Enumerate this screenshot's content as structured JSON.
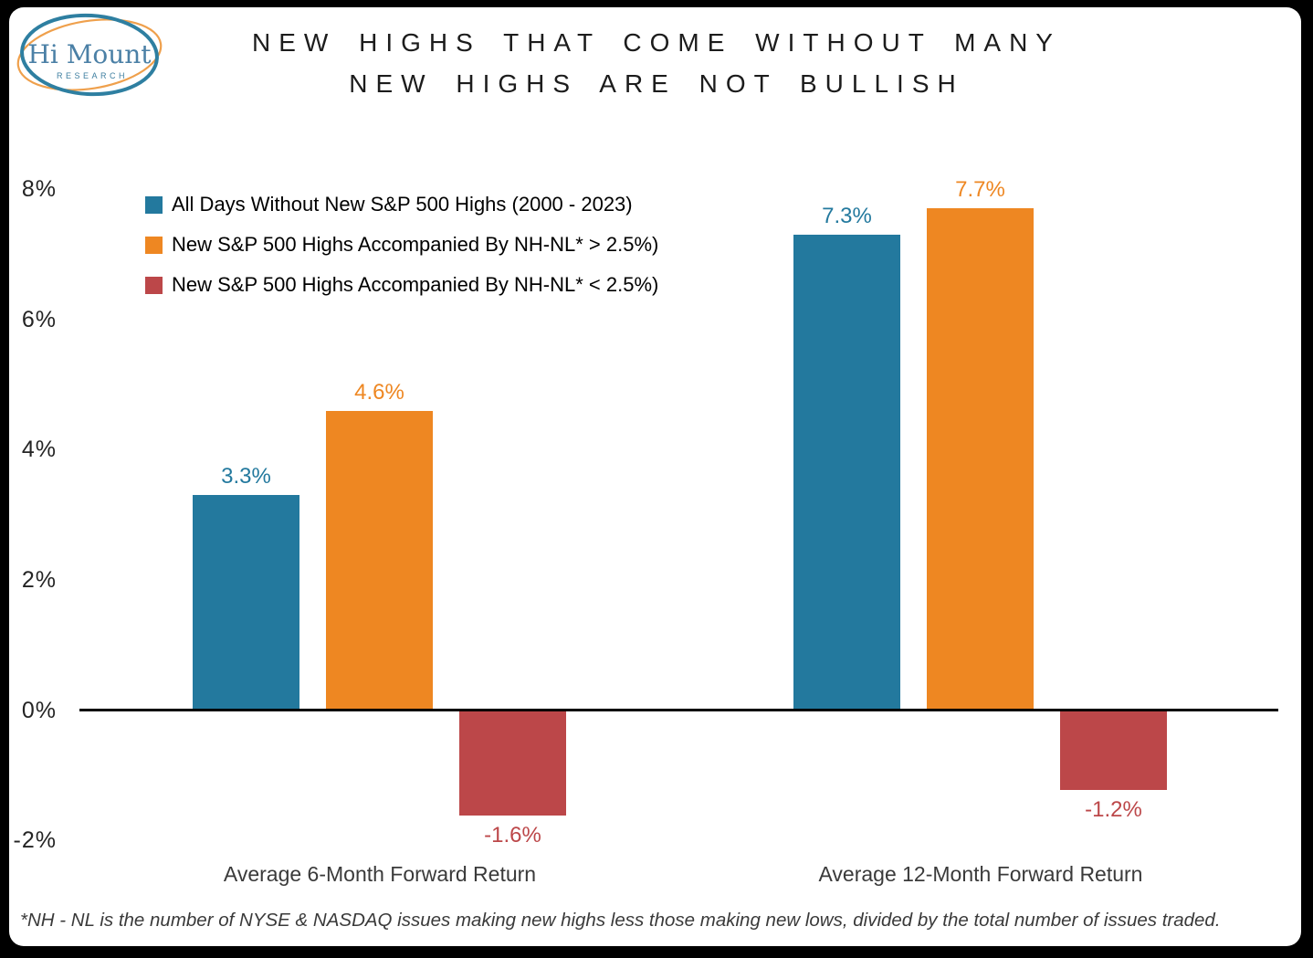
{
  "logo": {
    "name": "Hi Mount",
    "subname": "RESEARCH",
    "teal_ring_color": "#2E7FA1",
    "orange_ring_color": "#EFA04C",
    "text_color": "#4B80A6"
  },
  "title": {
    "line1": "NEW HIGHS THAT COME WITHOUT MANY",
    "line2": "NEW HIGHS ARE NOT BULLISH"
  },
  "footnote": "*NH - NL is the number of NYSE & NASDAQ issues making new highs less those making new lows, divided by the total number of issues traded.",
  "chart_data": {
    "type": "bar",
    "title": "New highs that come without many new highs are not bullish",
    "categories": [
      "Average 6-Month Forward Return",
      "Average 12-Month Forward Return"
    ],
    "series": [
      {
        "name": "All Days Without New S&P 500 Highs (2000 - 2023)",
        "color": "#23799E",
        "values": [
          3.3,
          7.3
        ],
        "labels": [
          "3.3%",
          "7.3%"
        ]
      },
      {
        "name": "New S&P 500 Highs Accompanied By NH-NL* > 2.5%)",
        "color": "#EE8722",
        "values": [
          4.6,
          7.7
        ],
        "labels": [
          "4.6%",
          "7.7%"
        ]
      },
      {
        "name": "New S&P 500 Highs Accompanied By NH-NL* < 2.5%)",
        "color": "#BC4749",
        "values": [
          -1.6,
          -1.2
        ],
        "labels": [
          "-1.6%",
          "-1.2%"
        ]
      }
    ],
    "ylim": [
      -2,
      8
    ],
    "yticks": [
      8,
      6,
      4,
      2,
      0,
      -2
    ],
    "ytick_labels": [
      "8%",
      "6%",
      "4%",
      "2%",
      "0%",
      "-2%"
    ],
    "grid": false,
    "legend_position": "top-left",
    "axis_color": "#000000"
  }
}
